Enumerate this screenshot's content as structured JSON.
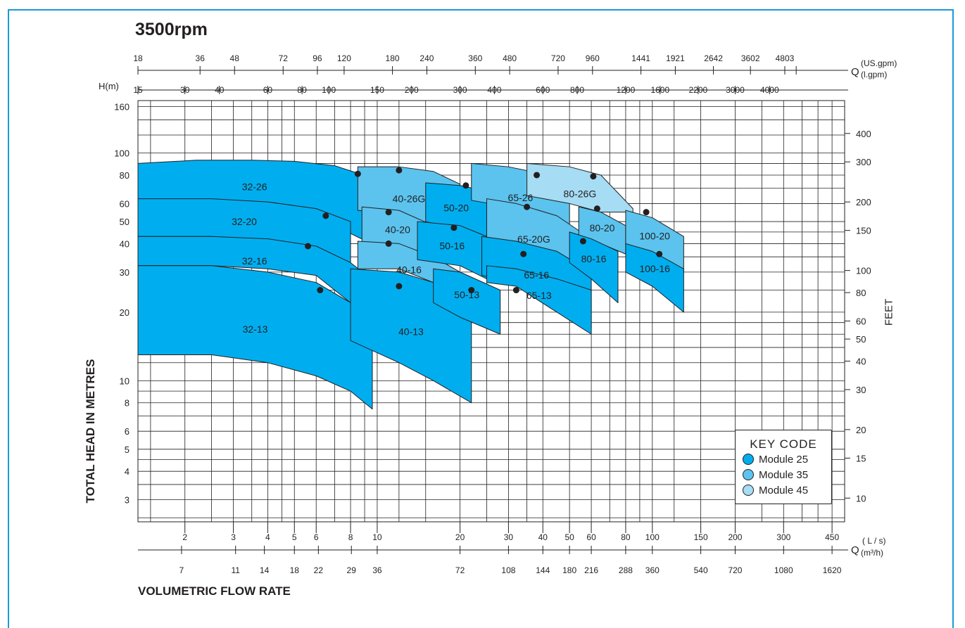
{
  "title": "3500rpm",
  "colors": {
    "module25": "#00aeef",
    "module35": "#5bc3ee",
    "module45": "#a6dcf4",
    "frame": "#1a9ad6"
  },
  "labels": {
    "ylabel": "TOTAL HEAD IN METRES",
    "xlabel": "VOLUMETRIC  FLOW RATE",
    "feet": "FEET",
    "hm": "H(m)",
    "q": "Q",
    "us_gpm": "(US.gpm)",
    "l_gpm": "(l.gpm)",
    "l_s": "( L / s)",
    "m3h": "(m³/h)"
  },
  "key": {
    "title": "KEY  CODE",
    "items": [
      {
        "label": "Module  25",
        "color": "#00aeef"
      },
      {
        "label": "Module  35",
        "color": "#5bc3ee"
      },
      {
        "label": "Module  45",
        "color": "#a6dcf4"
      }
    ]
  },
  "chart_data": {
    "type": "area",
    "title": "3500rpm",
    "xlabel": "VOLUMETRIC  FLOW RATE",
    "ylabel": "TOTAL HEAD IN METRES",
    "x_scale": "log",
    "y_scale": "log",
    "xlim_ls": [
      1.35,
      500
    ],
    "ylim_m": [
      2.4,
      170
    ],
    "grid": true,
    "legend": "bottom-right",
    "x_axis_ls": {
      "ticks": [
        2,
        3,
        4,
        5,
        6,
        8,
        10,
        20,
        30,
        40,
        50,
        60,
        80,
        100,
        150,
        200,
        300,
        450
      ],
      "labels": [
        "2",
        "3",
        "4",
        "5",
        "6",
        "8",
        "10",
        "20",
        "30",
        "40",
        "50",
        "60",
        "80",
        "100",
        "150",
        "200",
        "300",
        "450"
      ]
    },
    "x_axis_m3h": {
      "ticks": [
        1.944,
        3.056,
        3.889,
        5,
        6.111,
        8.056,
        10,
        20,
        30,
        40,
        50,
        60,
        80,
        100,
        150,
        200,
        300,
        450
      ],
      "labels": [
        "7",
        "11",
        "14",
        "18",
        "22",
        "29",
        "36",
        "72",
        "108",
        "144",
        "180",
        "216",
        "288",
        "360",
        "540",
        "720",
        "1080",
        "1620"
      ]
    },
    "x_axis_us_gpm": {
      "ticks": [
        1.35,
        2.27,
        3.03,
        4.55,
        6.06,
        7.58,
        11.36,
        15.15,
        22.73,
        30.3,
        45.45,
        60.61,
        90.9,
        121.2,
        166.7,
        227.3,
        303,
        333.3
      ],
      "labels": [
        "18",
        "36",
        "48",
        "72",
        "96",
        "120",
        "180",
        "240",
        "360",
        "480",
        "720",
        "960",
        "1441",
        "1921",
        "2642",
        "3602",
        "4803",
        ""
      ]
    },
    "x_axis_l_gpm": {
      "ticks": [
        1.35,
        2.0,
        2.67,
        4.0,
        5.33,
        6.67,
        10,
        13.33,
        20,
        26.67,
        40,
        53.33,
        80,
        106.7,
        146.7,
        200,
        266.7
      ],
      "labels": [
        "15",
        "30",
        "40",
        "60",
        "80",
        "100",
        "150",
        "200",
        "300",
        "400",
        "600",
        "800",
        "1200",
        "1600",
        "2200",
        "3000",
        "4000"
      ]
    },
    "y_axis_m": {
      "ticks": [
        3,
        4,
        5,
        6,
        8,
        10,
        20,
        30,
        40,
        50,
        60,
        80,
        100,
        160
      ],
      "labels": [
        "3",
        "4",
        "5",
        "6",
        "8",
        "10",
        "20",
        "30",
        "40",
        "50",
        "60",
        "80",
        "100",
        "160"
      ]
    },
    "y_axis_ft": {
      "ticks": [
        3.05,
        4.57,
        6.1,
        9.14,
        12.19,
        15.24,
        18.29,
        24.38,
        30.48,
        45.72,
        60.96,
        91.44,
        121.9
      ],
      "labels": [
        "10",
        "15",
        "20",
        "30",
        "40",
        "50",
        "60",
        "80",
        "100",
        "150",
        "200",
        "300",
        "400"
      ]
    },
    "series": [
      {
        "name": "32-26",
        "module": 25,
        "q": [
          1.35,
          2.2,
          3.5,
          5.0,
          7.0,
          9.5
        ],
        "h_top": [
          90,
          93,
          93,
          92,
          88,
          78
        ],
        "h_bot": [
          60,
          60,
          58,
          55,
          48,
          40
        ],
        "bep": [
          8.5,
          81
        ]
      },
      {
        "name": "32-20",
        "module": 25,
        "q": [
          1.35,
          2.5,
          4.0,
          6.0,
          8.0
        ],
        "h_top": [
          63,
          63,
          61,
          57,
          50
        ],
        "h_bot": [
          43,
          43,
          41,
          38,
          30
        ],
        "bep": [
          6.5,
          53
        ]
      },
      {
        "name": "32-16",
        "module": 25,
        "q": [
          1.35,
          2.5,
          4.0,
          6.0,
          8.0,
          9.5
        ],
        "h_top": [
          43,
          43,
          42,
          39,
          33,
          28
        ],
        "h_bot": [
          32,
          32,
          31,
          29,
          22,
          18
        ],
        "bep": [
          5.6,
          39
        ]
      },
      {
        "name": "32-13",
        "module": 25,
        "q": [
          1.35,
          2.5,
          4.0,
          6.0,
          8.0,
          9.6
        ],
        "h_top": [
          32,
          32,
          30,
          27,
          22,
          18
        ],
        "h_bot": [
          13,
          13,
          12,
          10.5,
          9,
          7.5
        ],
        "bep": [
          6.2,
          25
        ]
      },
      {
        "name": "40-26G",
        "module": 35,
        "q": [
          8.5,
          12,
          16,
          20
        ],
        "h_top": [
          87,
          87,
          83,
          73
        ],
        "h_bot": [
          56,
          54,
          48,
          42
        ],
        "bep": [
          12,
          84
        ]
      },
      {
        "name": "40-20",
        "module": 35,
        "q": [
          8.8,
          12,
          16
        ],
        "h_top": [
          58,
          56,
          48
        ],
        "h_bot": [
          39,
          38,
          31
        ],
        "bep": [
          11,
          55
        ]
      },
      {
        "name": "40-16",
        "module": 35,
        "q": [
          8.5,
          12,
          16,
          20
        ],
        "h_top": [
          41,
          40,
          35,
          30
        ],
        "h_bot": [
          31,
          31,
          27,
          22
        ],
        "bep": [
          11,
          40
        ]
      },
      {
        "name": "40-13",
        "module": 25,
        "q": [
          8.0,
          12,
          16,
          22
        ],
        "h_top": [
          31,
          30,
          27,
          20
        ],
        "h_bot": [
          15,
          12,
          10,
          8
        ],
        "bep": [
          12,
          26
        ]
      },
      {
        "name": "50-20",
        "module": 25,
        "q": [
          15,
          20,
          25
        ],
        "h_top": [
          74,
          72,
          68
        ],
        "h_bot": [
          50,
          46,
          40
        ],
        "bep": [
          21,
          72
        ]
      },
      {
        "name": "50-16",
        "module": 25,
        "q": [
          14,
          20,
          25
        ],
        "h_top": [
          50,
          48,
          43
        ],
        "h_bot": [
          34,
          32,
          28
        ],
        "bep": [
          19,
          47
        ]
      },
      {
        "name": "50-13",
        "module": 25,
        "q": [
          16,
          20,
          28
        ],
        "h_top": [
          31,
          30,
          25
        ],
        "h_bot": [
          22,
          19,
          16
        ],
        "bep": [
          22,
          25
        ]
      },
      {
        "name": "65-26",
        "module": 35,
        "q": [
          22,
          30,
          40,
          50
        ],
        "h_top": [
          90,
          87,
          81,
          68
        ],
        "h_bot": [
          62,
          58,
          50,
          44
        ],
        "bep": [
          38,
          80
        ]
      },
      {
        "name": "65-20G",
        "module": 35,
        "q": [
          25,
          32,
          45,
          55
        ],
        "h_top": [
          63,
          60,
          53,
          45
        ],
        "h_bot": [
          36,
          35,
          33,
          30
        ],
        "bep": [
          35,
          58
        ]
      },
      {
        "name": "65-16",
        "module": 25,
        "q": [
          24,
          32,
          45,
          60
        ],
        "h_top": [
          43,
          41,
          37,
          30
        ],
        "h_bot": [
          29,
          27,
          23,
          17
        ],
        "bep": [
          34,
          36
        ]
      },
      {
        "name": "65-13",
        "module": 25,
        "q": [
          25,
          32,
          45,
          60
        ],
        "h_top": [
          32,
          31,
          28,
          25
        ],
        "h_bot": [
          27,
          26,
          20,
          16
        ],
        "bep": [
          32,
          25
        ]
      },
      {
        "name": "80-26G",
        "module": 45,
        "q": [
          35,
          50,
          65,
          85
        ],
        "h_top": [
          90,
          87,
          80,
          57
        ],
        "h_bot": [
          65,
          60,
          55,
          55
        ],
        "bep": [
          61,
          79
        ]
      },
      {
        "name": "80-20",
        "module": 35,
        "q": [
          54,
          65,
          80
        ],
        "h_top": [
          58,
          55,
          48
        ],
        "h_bot": [
          42,
          40,
          36
        ],
        "bep": [
          63,
          57
        ]
      },
      {
        "name": "80-16",
        "module": 25,
        "q": [
          50,
          60,
          75
        ],
        "h_top": [
          45,
          42,
          37
        ],
        "h_bot": [
          33,
          28,
          22
        ],
        "bep": [
          56,
          41
        ]
      },
      {
        "name": "100-20",
        "module": 35,
        "q": [
          80,
          100,
          130
        ],
        "h_top": [
          56,
          52,
          43
        ],
        "h_bot": [
          40,
          36,
          30
        ],
        "bep": [
          95,
          55
        ]
      },
      {
        "name": "100-16",
        "module": 25,
        "q": [
          80,
          100,
          130
        ],
        "h_top": [
          40,
          37,
          31
        ],
        "h_bot": [
          30,
          26,
          20
        ],
        "bep": [
          106,
          36
        ]
      }
    ]
  }
}
